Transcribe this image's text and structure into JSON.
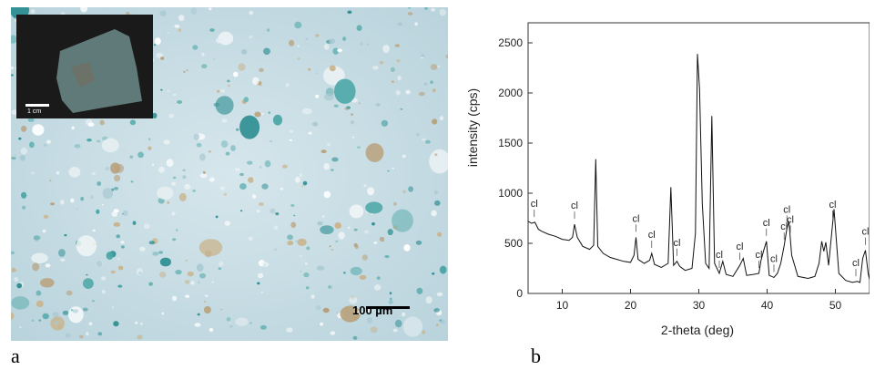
{
  "figure": {
    "panel_a_label": "a",
    "panel_b_label": "b",
    "micrograph": {
      "scale_bar_label": "100 µm",
      "inset_scale_label": "1 cm"
    }
  },
  "chart_data": {
    "type": "line",
    "xlabel": "2-theta (deg)",
    "ylabel": "intensity (cps)",
    "xlim": [
      5,
      55
    ],
    "ylim": [
      0,
      2700
    ],
    "x_ticks": [
      10,
      20,
      30,
      40,
      50
    ],
    "y_ticks": [
      0,
      500,
      1000,
      1500,
      2000,
      2500
    ],
    "grid": false,
    "series": [
      {
        "x": [
          5,
          5.5,
          6,
          6.5,
          7,
          8,
          9,
          10,
          11,
          11.5,
          11.8,
          12.2,
          13,
          14,
          14.6,
          14.9,
          15.2,
          16,
          17,
          18,
          19,
          20,
          20.5,
          20.8,
          21.1,
          22,
          22.8,
          23.1,
          23.5,
          24.5,
          25.5,
          25.9,
          26.3,
          26.8,
          27.2,
          28,
          29,
          29.5,
          29.8,
          30.1,
          30.5,
          31,
          31.5,
          31.9,
          32.3,
          33,
          33.5,
          34,
          35,
          36,
          36.5,
          37,
          38,
          38.8,
          39.1,
          39.5,
          39.9,
          40.3,
          41,
          41.5,
          42,
          42.5,
          42.9,
          43.2,
          43.6,
          44.5,
          46,
          47,
          47.6,
          48,
          48.3,
          48.6,
          49,
          49.4,
          49.8,
          50.5,
          51.5,
          52.5,
          53.2,
          53.6,
          54,
          54.4,
          54.8,
          55
        ],
        "y": [
          720,
          700,
          710,
          640,
          620,
          590,
          570,
          540,
          530,
          560,
          690,
          560,
          470,
          440,
          480,
          1340,
          470,
          400,
          360,
          340,
          320,
          310,
          380,
          560,
          340,
          300,
          330,
          400,
          290,
          260,
          300,
          1060,
          280,
          320,
          270,
          230,
          250,
          600,
          2390,
          2040,
          900,
          300,
          250,
          1770,
          300,
          200,
          320,
          190,
          170,
          280,
          350,
          180,
          190,
          200,
          330,
          430,
          520,
          180,
          160,
          200,
          300,
          480,
          650,
          720,
          380,
          170,
          150,
          170,
          300,
          520,
          420,
          510,
          280,
          560,
          840,
          200,
          130,
          110,
          120,
          110,
          350,
          430,
          200,
          140
        ]
      }
    ],
    "annotations": [
      {
        "text": "cl",
        "x": 5.9
      },
      {
        "text": "cl",
        "x": 11.8
      },
      {
        "text": "cl",
        "x": 20.8
      },
      {
        "text": "cl",
        "x": 23.1
      },
      {
        "text": "cl",
        "x": 26.8
      },
      {
        "text": "cl",
        "x": 33.0
      },
      {
        "text": "cl",
        "x": 36.0
      },
      {
        "text": "cl",
        "x": 38.8
      },
      {
        "text": "cl",
        "x": 39.9
      },
      {
        "text": "cl",
        "x": 41.0
      },
      {
        "text": "cl",
        "x": 42.5
      },
      {
        "text": "cl",
        "x": 42.9
      },
      {
        "text": "cl",
        "x": 43.4
      },
      {
        "text": "cl",
        "x": 49.6
      },
      {
        "text": "cl",
        "x": 53.0
      },
      {
        "text": "cl",
        "x": 54.4
      }
    ]
  }
}
